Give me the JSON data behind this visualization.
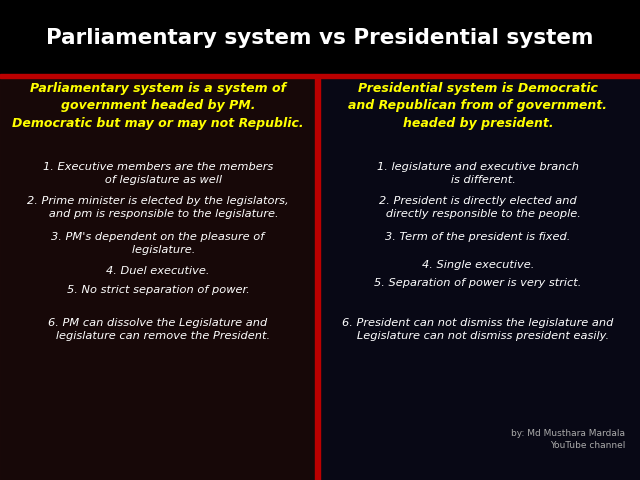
{
  "title": "Parliamentary system vs Presidential system",
  "title_color": "#ffffff",
  "bg_color": "#0a0a0a",
  "red_line_color": "#bb0000",
  "left_header": "Parliamentary system is a system of\ngovernment headed by PM.\nDemocratic but may or may not Republic.",
  "left_header_color": "#ffff00",
  "left_points": [
    "1. Executive members are the members\n   of legislature as well",
    "2. Prime minister is elected by the legislators,\n   and pm is responsible to the legislature.",
    "3. PM's dependent on the pleasure of\n   legislature.",
    "4. Duel executive.",
    "5. No strict separation of power.",
    "6. PM can dissolve the Legislature and\n   legislature can remove the President."
  ],
  "left_points_color": "#ffffff",
  "right_header": "Presidential system is Democratic\nand Republican from of government.\nheaded by president.",
  "right_header_color": "#ffff00",
  "right_points": [
    "1. legislature and executive branch\n   is different.",
    "2. President is directly elected and\n   directly responsible to the people.",
    "3. Term of the president is fixed.",
    "4. Single executive.",
    "5. Separation of power is very strict.",
    "6. President can not dismiss the legislature and\n   Legislature can not dismiss president easily."
  ],
  "right_points_color": "#ffffff",
  "divider_color": "#bb0000",
  "watermark_line1": "by: Md Musthara Mardala",
  "watermark_line2": "YouTube channel",
  "watermark_color": "#aaaaaa"
}
